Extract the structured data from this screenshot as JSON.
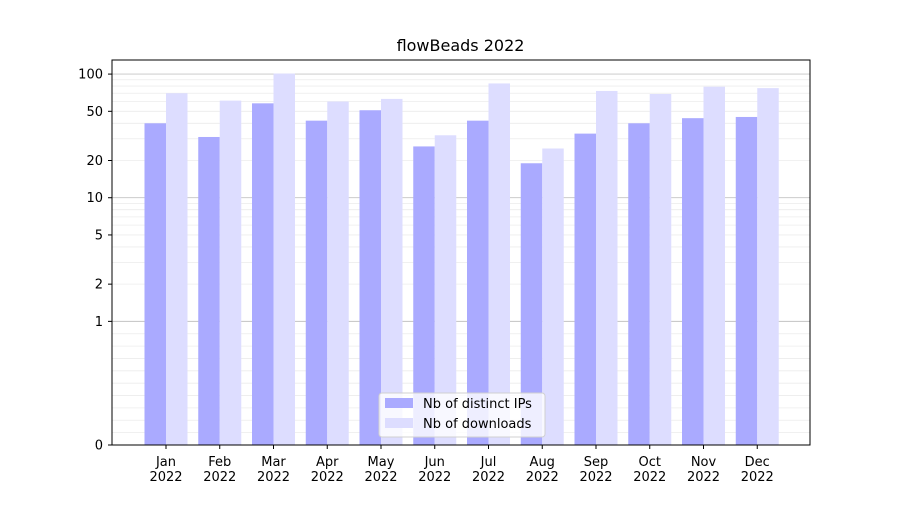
{
  "chart_data": {
    "type": "bar",
    "title": "flowBeads 2022",
    "xlabel": "",
    "ylabel": "",
    "yscale": "symlog",
    "ylim": [
      0,
      130
    ],
    "grid": "horizontal, major and minor",
    "legend_position": "bottom-center",
    "categories": [
      "Jan\n2022",
      "Feb\n2022",
      "Mar\n2022",
      "Apr\n2022",
      "May\n2022",
      "Jun\n2022",
      "Jul\n2022",
      "Aug\n2022",
      "Sep\n2022",
      "Oct\n2022",
      "Nov\n2022",
      "Dec\n2022"
    ],
    "series": [
      {
        "name": "Nb of distinct IPs",
        "color": "#aaaaff",
        "values": [
          40,
          31,
          58,
          42,
          51,
          26,
          42,
          19,
          33,
          40,
          44,
          45
        ]
      },
      {
        "name": "Nb of downloads",
        "color": "#ddddff",
        "values": [
          70,
          61,
          101,
          60,
          63,
          32,
          84,
          25,
          73,
          69,
          79,
          77
        ]
      }
    ],
    "yticks": [
      0,
      1,
      2,
      5,
      10,
      20,
      50,
      100
    ]
  }
}
